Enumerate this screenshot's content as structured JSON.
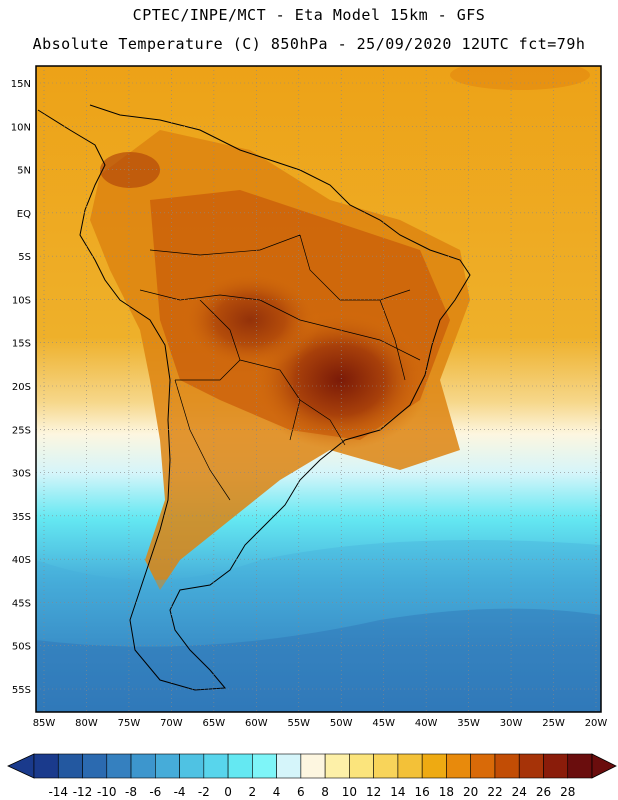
{
  "header": {
    "line1": "CPTEC/INPE/MCT -  Eta Model 15km - GFS",
    "line2": "Absolute Temperature (C) 850hPa - 25/09/2020 12UTC fct=79h"
  },
  "map": {
    "lat_labels": [
      "15N",
      "10N",
      "5N",
      "EQ",
      "5S",
      "10S",
      "15S",
      "20S",
      "25S",
      "30S",
      "35S",
      "40S",
      "45S",
      "50S",
      "55S"
    ],
    "lon_labels": [
      "85W",
      "80W",
      "75W",
      "70W",
      "65W",
      "60W",
      "55W",
      "50W",
      "45W",
      "40W",
      "35W",
      "30W",
      "25W",
      "20W"
    ],
    "lat_range": [
      15,
      -55
    ],
    "lon_range": [
      -85,
      -20
    ]
  },
  "colorbar": {
    "labels": [
      "-14",
      "-12",
      "-10",
      "-8",
      "-6",
      "-4",
      "-2",
      "0",
      "2",
      "4",
      "6",
      "8",
      "10",
      "12",
      "14",
      "16",
      "18",
      "20",
      "22",
      "24",
      "26",
      "28"
    ],
    "colors": [
      "#1a3a8c",
      "#2358a0",
      "#2b6ab0",
      "#3580bf",
      "#3d96cd",
      "#46acd9",
      "#4fc2e3",
      "#58d5ec",
      "#64e8f2",
      "#7ef5f8",
      "#d5f5fa",
      "#fdf6e0",
      "#fdf0a8",
      "#fbe47c",
      "#f8d45a",
      "#f3c138",
      "#eeaa12",
      "#e88a0c",
      "#d96a08",
      "#c24d05",
      "#a63308",
      "#8a1c0a",
      "#6a0d0d"
    ]
  }
}
